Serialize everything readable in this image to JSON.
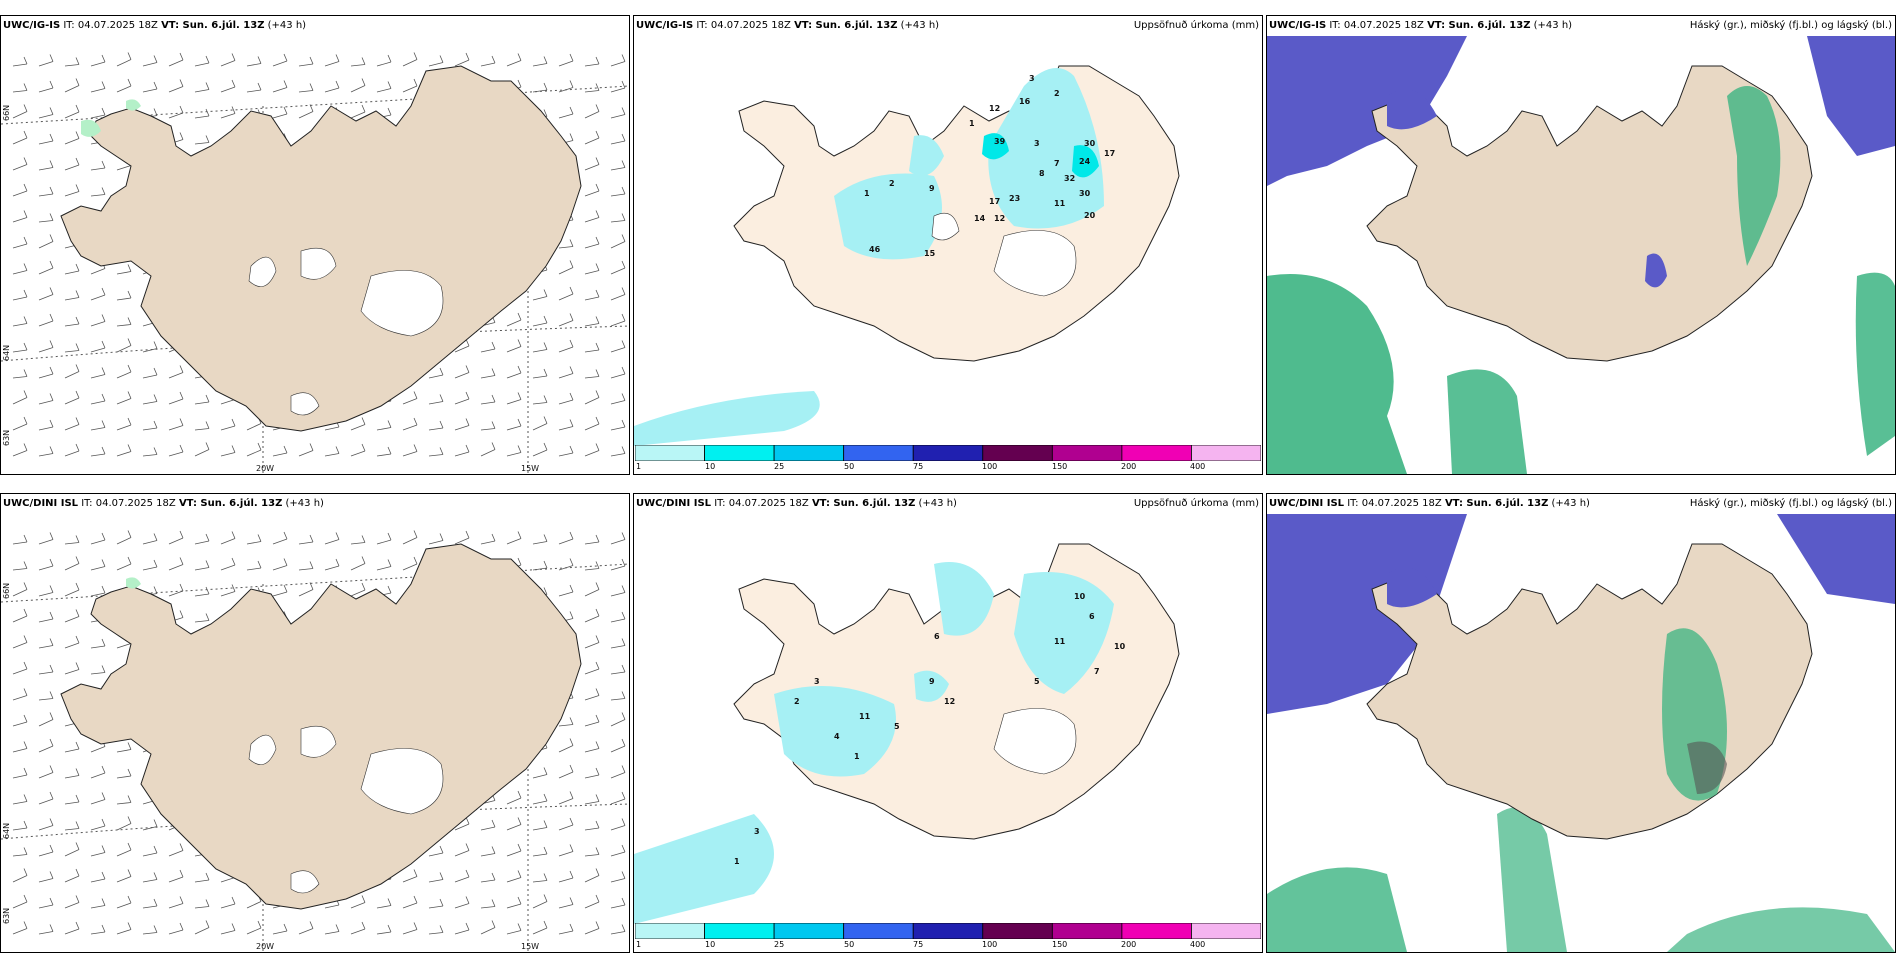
{
  "common": {
    "it_prefix": "IT:",
    "it_value": "04.07.2025 18Z",
    "vt_label": "VT: Sun. 6.júl. 13Z",
    "offset": "(+43 h)"
  },
  "rows": [
    {
      "model": "UWC/IG-IS"
    },
    {
      "model": "UWC/DINI ISL"
    }
  ],
  "labels": {
    "precip_title": "Uppsöfnuð úrkoma (mm)",
    "cloud_title": "Háský (gr.), miðský (fj.bl.) og lágský (bl.)"
  },
  "axes": {
    "lon": [
      "20W",
      "15W"
    ],
    "lat": [
      "66N",
      "64N"
    ],
    "lat_left_bottom": "63N"
  },
  "colorbar": {
    "ticks": [
      "1",
      "10",
      "25",
      "50",
      "75",
      "100",
      "150",
      "200",
      "400"
    ],
    "colors": [
      "#b9f6f6",
      "#00f0f0",
      "#00c8f0",
      "#3264f0",
      "#2020b0",
      "#640050",
      "#b00090",
      "#f000b4",
      "#f5b4f0"
    ]
  },
  "precip_numbers_top": [
    "3",
    "2",
    "16",
    "12",
    "39",
    "1",
    "30",
    "17",
    "24",
    "32",
    "30",
    "20",
    "23",
    "17",
    "14",
    "12",
    "11",
    "8",
    "7",
    "3",
    "46",
    "15",
    "9",
    "2",
    "1"
  ],
  "precip_numbers_bottom": [
    "10",
    "6",
    "11",
    "10",
    "7",
    "5",
    "12",
    "9",
    "6",
    "11",
    "2",
    "3",
    "4",
    "1",
    "5",
    "3",
    "1"
  ],
  "colors": {
    "land": "#e8d8c4",
    "land_precip": "#fbeee0",
    "precip_light": "#a6f0f4",
    "precip_med": "#00e8e8",
    "high_cloud": "#5a5ac8",
    "low_cloud_green": "#3cb482"
  }
}
